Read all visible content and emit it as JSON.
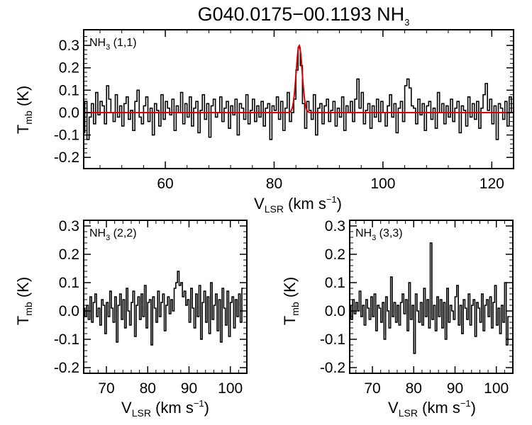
{
  "figure": {
    "title_main": "G040.0175−00.1193 NH",
    "title_sub": "3"
  },
  "axis_labels": {
    "y_main": "T",
    "y_sub": "mb",
    "y_unit": " (K)",
    "x_main": "V",
    "x_sub": "LSR",
    "x_unit": " (km s",
    "x_sup": "−1",
    "x_close": ")"
  },
  "chart_data": [
    {
      "type": "line",
      "panel": "top",
      "label_main": "NH",
      "label_sub": "3",
      "label_rest": " (1,1)",
      "xlim": [
        45,
        124
      ],
      "ylim": [
        -0.25,
        0.37
      ],
      "xticks": [
        60,
        80,
        100,
        120
      ],
      "yticks": [
        "0.3",
        "0.2",
        "0.1",
        "0.0",
        "-0.1",
        "-0.2"
      ],
      "series": [
        {
          "name": "spectrum",
          "style": "step",
          "color": "#000000",
          "x_start": 45.0,
          "x_step": 0.4,
          "values": [
            -0.09,
            0.05,
            -0.12,
            -0.02,
            0.04,
            -0.05,
            0.09,
            -0.01,
            0.05,
            0.03,
            -0.05,
            0.12,
            0.06,
            0.0,
            -0.04,
            0.08,
            -0.02,
            0.03,
            -0.06,
            0.04,
            0.07,
            -0.03,
            0.01,
            -0.08,
            0.05,
            0.1,
            -0.02,
            -0.05,
            0.03,
            0.07,
            -0.04,
            0.02,
            -0.1,
            0.04,
            0.01,
            -0.06,
            0.08,
            -0.03,
            0.05,
            0.02,
            -0.01,
            0.06,
            -0.08,
            0.03,
            0.0,
            0.09,
            -0.05,
            0.04,
            -0.02,
            0.07,
            -0.06,
            0.02,
            0.05,
            -0.09,
            0.01,
            0.08,
            -0.03,
            0.04,
            -0.11,
            0.03,
            0.06,
            -0.02,
            0.0,
            0.07,
            -0.04,
            0.02,
            0.05,
            -0.07,
            0.03,
            -0.01,
            0.06,
            -0.1,
            0.04,
            0.02,
            -0.03,
            0.08,
            -0.05,
            0.01,
            0.06,
            -0.04,
            0.03,
            -0.02,
            0.05,
            -0.06,
            0.02,
            0.04,
            -0.12,
            0.03,
            0.01,
            0.07,
            -0.03,
            0.05,
            -0.08,
            0.02,
            0.09,
            -0.04,
            0.0,
            0.06,
            -0.05,
            0.03,
            -0.02,
            0.04,
            -0.07,
            0.05,
            0.01,
            -0.03,
            0.08,
            -0.1,
            0.02,
            0.04,
            -0.05,
            0.03,
            0.06,
            -0.04,
            0.01,
            0.05,
            -0.06,
            0.02,
            -0.02,
            0.07,
            -0.08,
            0.03,
            0.0,
            0.05,
            -0.04,
            0.06,
            -0.03,
            0.02,
            0.09,
            -0.05,
            0.01,
            0.04,
            -0.07,
            0.03,
            -0.02,
            0.06,
            -0.04,
            0.05,
            0.0,
            -0.06,
            0.03,
            0.08,
            -0.02,
            0.04,
            -0.09,
            0.02,
            0.05,
            -0.04,
            0.01,
            0.07,
            -0.06,
            0.03,
            0.02,
            -0.05,
            0.06,
            -0.01,
            0.04,
            -0.08,
            0.03,
            0.05,
            -0.03,
            0.02,
            -0.07,
            0.09,
            0.0,
            0.04,
            -0.05,
            0.03,
            -0.02,
            0.06,
            -0.04,
            0.02,
            0.05,
            -0.09,
            0.03,
            0.01,
            -0.06,
            0.07,
            -0.02,
            0.04,
            -0.03,
            0.05,
            -0.07,
            0.02,
            0.08,
            -0.04,
            0.01,
            0.06,
            -0.05,
            0.03,
            -0.12,
            0.04,
            0.02,
            -0.03,
            0.05,
            -0.06,
            0.07,
            0.0,
            -0.1
          ],
          "overrides": [
            [
              84.2,
              0.19
            ],
            [
              84.6,
              0.29
            ],
            [
              85.0,
              0.21
            ],
            [
              95.4,
              0.15
            ],
            [
              104.2,
              0.12
            ],
            [
              104.6,
              0.15
            ],
            [
              105.0,
              0.11
            ],
            [
              119.0,
              0.13
            ]
          ]
        },
        {
          "name": "fit",
          "style": "gaussian",
          "color": "#dd0000",
          "amplitude": 0.3,
          "center": 84.6,
          "sigma": 0.55
        }
      ]
    },
    {
      "type": "line",
      "panel": "bottom-left",
      "label_main": "NH",
      "label_sub": "3",
      "label_rest": " (2,2)",
      "xlim": [
        64.5,
        104
      ],
      "ylim": [
        -0.22,
        0.32
      ],
      "xticks": [
        70,
        80,
        90,
        100
      ],
      "yticks": [
        "0.3",
        "0.2",
        "0.1",
        "0.0",
        "-0.1",
        "-0.2"
      ],
      "series": [
        {
          "name": "spectrum",
          "style": "step",
          "color": "#000000",
          "x_start": 64.6,
          "x_step": 0.4,
          "values": [
            0.01,
            -0.02,
            0.02,
            -0.03,
            0.05,
            -0.04,
            0.03,
            0.06,
            -0.02,
            0.01,
            -0.05,
            0.04,
            0.02,
            -0.08,
            0.03,
            -0.02,
            0.07,
            0.01,
            -0.04,
            0.05,
            -0.11,
            0.02,
            0.06,
            -0.03,
            0.04,
            -0.06,
            0.08,
            0.0,
            -0.05,
            0.03,
            0.07,
            -0.09,
            0.02,
            0.05,
            -0.03,
            0.06,
            -0.02,
            0.09,
            -0.06,
            0.03,
            0.04,
            -0.12,
            0.05,
            0.01,
            -0.04,
            0.07,
            -0.02,
            0.03,
            0.06,
            -0.07,
            0.02,
            0.05,
            -0.01,
            0.04,
            0.0,
            0.08,
            0.1,
            0.14,
            0.09,
            0.1,
            0.05,
            0.07,
            0.02,
            0.04,
            -0.04,
            0.08,
            0.01,
            -0.06,
            0.06,
            -0.02,
            0.09,
            -0.1,
            0.03,
            0.07,
            -0.04,
            0.05,
            -0.08,
            0.1,
            -0.03,
            0.02,
            0.06,
            -0.07,
            0.04,
            -0.11,
            0.08,
            0.01,
            -0.05,
            0.07,
            -0.09,
            0.03,
            0.05,
            -0.06,
            0.04,
            -0.02,
            0.06,
            -0.04,
            0.08
          ]
        }
      ]
    },
    {
      "type": "line",
      "panel": "bottom-right",
      "label_main": "NH",
      "label_sub": "3",
      "label_rest": " (3,3)",
      "xlim": [
        64.5,
        104
      ],
      "ylim": [
        -0.22,
        0.32
      ],
      "xticks": [
        70,
        80,
        90,
        100
      ],
      "yticks": [
        "0.3",
        "0.2",
        "0.1",
        "0.0",
        "-0.1",
        "-0.2"
      ],
      "series": [
        {
          "name": "spectrum",
          "style": "step",
          "color": "#000000",
          "x_start": 64.6,
          "x_step": 0.4,
          "values": [
            0.02,
            -0.03,
            0.04,
            -0.01,
            0.03,
            0.0,
            0.07,
            -0.02,
            0.02,
            -0.05,
            0.04,
            0.01,
            -0.03,
            0.05,
            -0.02,
            0.06,
            -0.07,
            0.02,
            0.01,
            -0.04,
            0.03,
            -0.1,
            0.05,
            0.0,
            -0.06,
            0.12,
            -0.02,
            0.03,
            -0.04,
            0.02,
            -0.05,
            0.03,
            0.06,
            -0.01,
            0.04,
            -0.07,
            0.1,
            -0.03,
            0.02,
            -0.15,
            0.06,
            0.0,
            -0.04,
            0.03,
            -0.05,
            0.08,
            -0.02,
            0.04,
            -0.06,
            0.24,
            -0.03,
            0.02,
            -0.07,
            0.05,
            -0.02,
            0.04,
            -0.06,
            0.03,
            -0.1,
            0.08,
            -0.04,
            0.02,
            0.0,
            -0.03,
            0.05,
            0.09,
            -0.05,
            0.02,
            -0.08,
            0.04,
            0.01,
            -0.03,
            0.06,
            -0.05,
            0.02,
            0.04,
            -0.09,
            0.03,
            0.01,
            -0.04,
            0.06,
            -0.07,
            0.02,
            0.04,
            -0.02,
            0.05,
            -0.06,
            0.03,
            0.09,
            -0.05,
            0.01,
            -0.08,
            0.02,
            -0.04,
            0.1,
            -0.12,
            -0.02
          ]
        }
      ]
    }
  ]
}
